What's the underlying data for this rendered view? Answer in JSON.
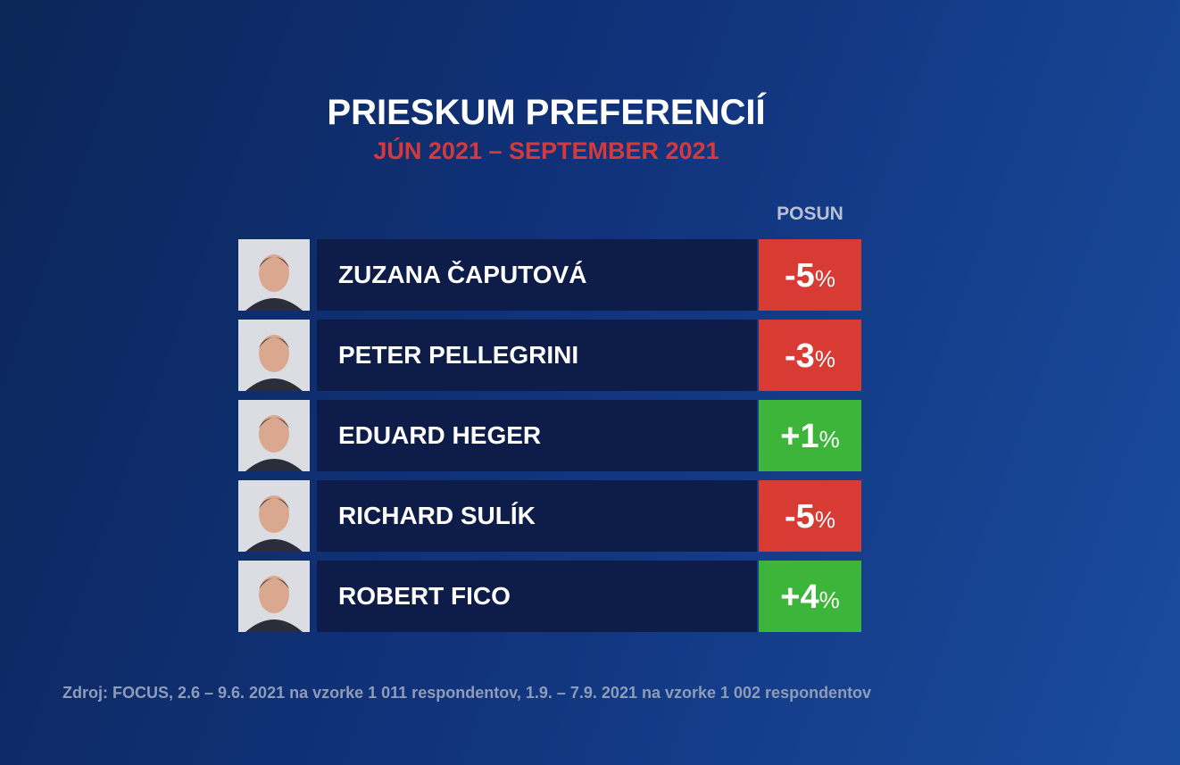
{
  "header": {
    "title": "PRIESKUM PREFERENCIÍ",
    "subtitle": "JÚN 2021 – SEPTEMBER 2021"
  },
  "table": {
    "column_header": "POSUN",
    "rows": [
      {
        "name": "ZUZANA ČAPUTOVÁ",
        "change": "-5",
        "unit": "%",
        "color": "#d83a34"
      },
      {
        "name": "PETER PELLEGRINI",
        "change": "-3",
        "unit": "%",
        "color": "#d83a34"
      },
      {
        "name": "EDUARD HEGER",
        "change": "+1",
        "unit": "%",
        "color": "#3db43a"
      },
      {
        "name": "RICHARD SULÍK",
        "change": "-5",
        "unit": "%",
        "color": "#d83a34"
      },
      {
        "name": "ROBERT FICO",
        "change": "+4",
        "unit": "%",
        "color": "#3db43a"
      }
    ]
  },
  "footer": {
    "source": "Zdroj: FOCUS, 2.6 – 9.6. 2021 na vzorke 1 011 respondentov, 1.9. – 7.9. 2021 na vzorke 1 002 respondentov"
  }
}
